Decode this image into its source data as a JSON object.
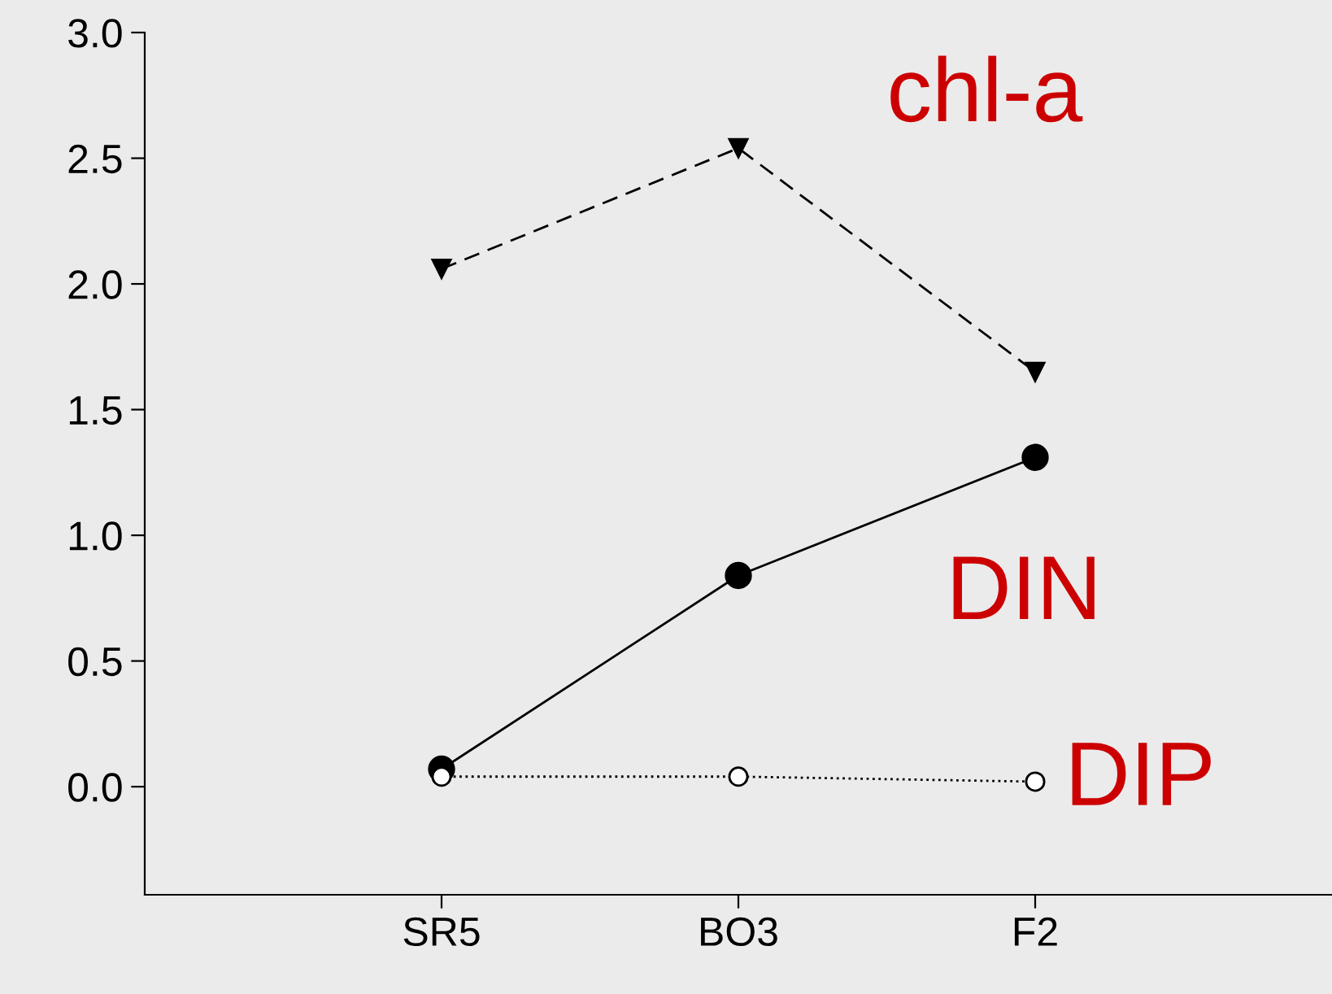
{
  "chart_data": {
    "type": "line",
    "categories": [
      "SR5",
      "BO3",
      "F2"
    ],
    "series": [
      {
        "name": "chl-a",
        "color": "#000000",
        "marker": "triangle",
        "line_style": "dashed",
        "values": [
          2.06,
          2.54,
          1.65
        ]
      },
      {
        "name": "DIN",
        "color": "#000000",
        "marker": "circle",
        "line_style": "solid",
        "values": [
          0.07,
          0.84,
          1.31
        ]
      },
      {
        "name": "DIP",
        "color": "#ffffff",
        "marker": "circle",
        "line_style": "dotted",
        "values": [
          0.04,
          0.04,
          0.02
        ]
      }
    ],
    "ylim": [
      -0.43,
      3.0
    ],
    "yticks": [
      {
        "value": 0,
        "label": "0.0"
      },
      {
        "value": 0.5,
        "label": "0.5"
      },
      {
        "value": 1,
        "label": "1.0"
      },
      {
        "value": 1.5,
        "label": "1.5"
      },
      {
        "value": 2,
        "label": "2.0"
      },
      {
        "value": 2.5,
        "label": "2.5"
      },
      {
        "value": 3,
        "label": "3.0"
      }
    ],
    "grid": false,
    "legend": false
  }
}
